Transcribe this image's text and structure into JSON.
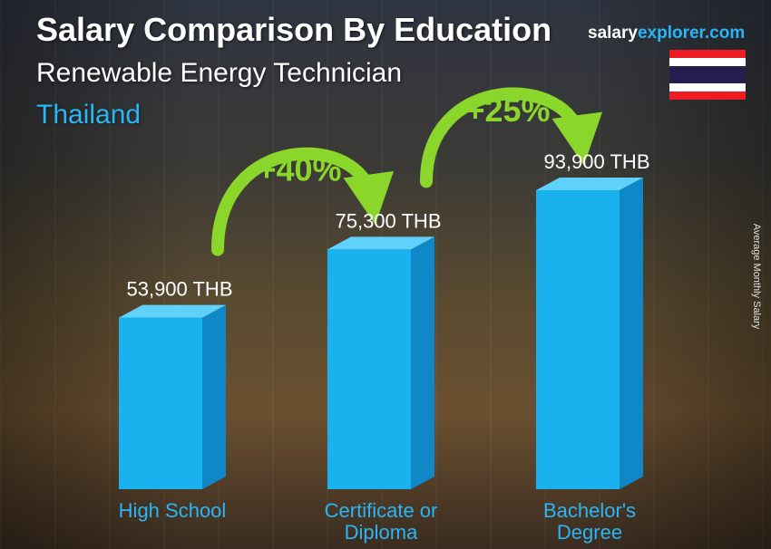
{
  "header": {
    "title": "Salary Comparison By Education",
    "subtitle": "Renewable Energy Technician",
    "location": "Thailand",
    "brand_part1": "salary",
    "brand_part2": "explorer.com",
    "side_label": "Average Monthly Salary"
  },
  "colors": {
    "bar_front": "#1ab2ee",
    "bar_side": "#1088c8",
    "bar_top": "#5fd1fb",
    "label_blue": "#29b6f6",
    "arrow_green": "#8bd62a",
    "flag_red": "#ed1c24",
    "flag_white": "#ffffff",
    "flag_blue": "#241d4f"
  },
  "chart_data": {
    "type": "bar",
    "categories": [
      "High School",
      "Certificate or Diploma",
      "Bachelor's Degree"
    ],
    "category_lines": [
      [
        "High School"
      ],
      [
        "Certificate or",
        "Diploma"
      ],
      [
        "Bachelor's",
        "Degree"
      ]
    ],
    "values": [
      53900,
      75300,
      93900
    ],
    "value_labels": [
      "53,900 THB",
      "75,300 THB",
      "93,900 THB"
    ],
    "unit": "THB",
    "ylabel": "Average Monthly Salary",
    "increases": [
      {
        "from": 0,
        "to": 1,
        "label": "+40%"
      },
      {
        "from": 1,
        "to": 2,
        "label": "+25%"
      }
    ]
  }
}
